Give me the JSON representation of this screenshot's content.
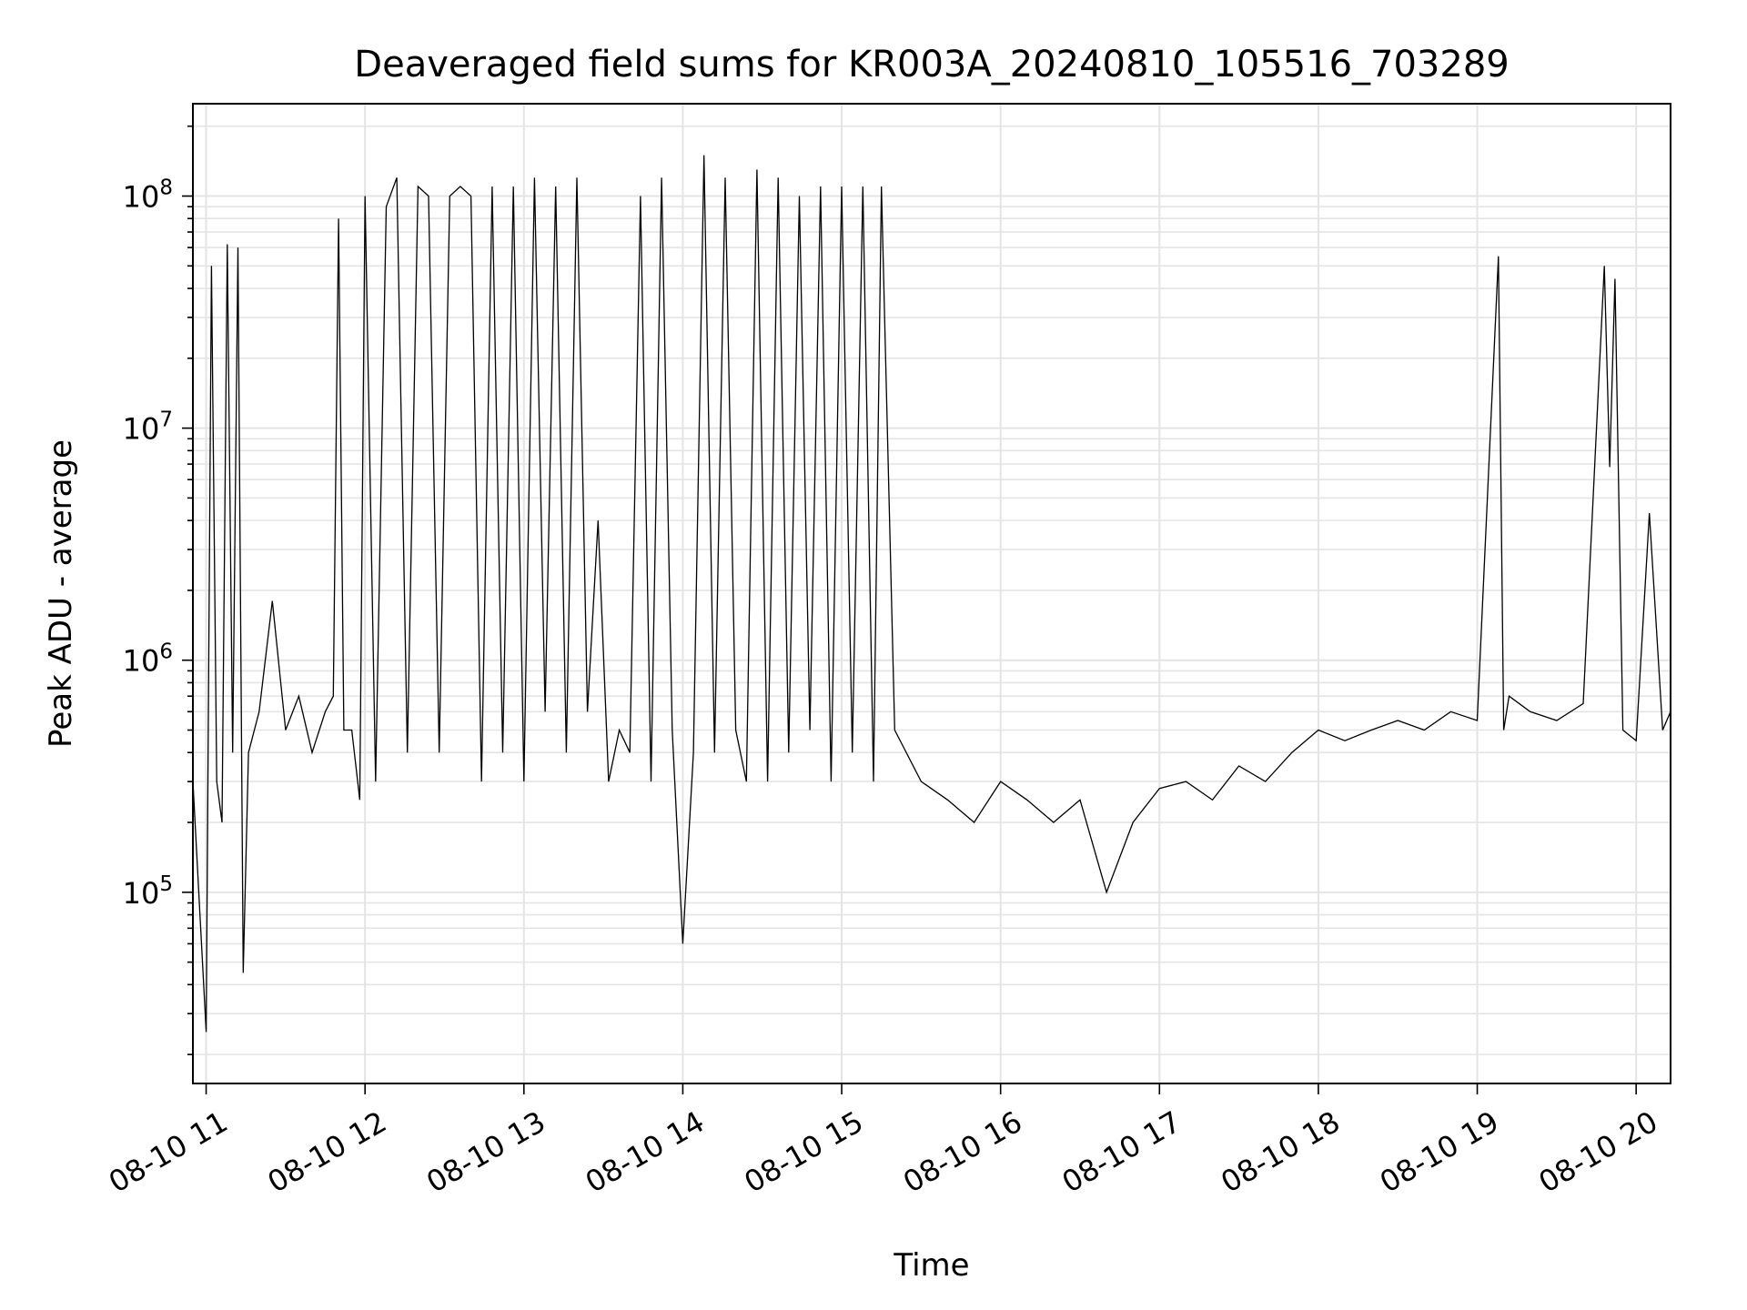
{
  "chart_data": {
    "type": "line",
    "title": "Deaveraged field sums for KR003A_20240810_105516_703289",
    "xlabel": "Time",
    "ylabel": "Peak ADU - average",
    "yscale": "log",
    "ylim": [
      15000,
      250000000
    ],
    "xlim": [
      "2024-08-10 10:55",
      "2024-08-10 20:13"
    ],
    "grid": true,
    "legend": "none",
    "line_color": "#000000",
    "x_ticks": [
      {
        "t": "2024-08-10 11:00",
        "label": "08-10 11"
      },
      {
        "t": "2024-08-10 12:00",
        "label": "08-10 12"
      },
      {
        "t": "2024-08-10 13:00",
        "label": "08-10 13"
      },
      {
        "t": "2024-08-10 14:00",
        "label": "08-10 14"
      },
      {
        "t": "2024-08-10 15:00",
        "label": "08-10 15"
      },
      {
        "t": "2024-08-10 16:00",
        "label": "08-10 16"
      },
      {
        "t": "2024-08-10 17:00",
        "label": "08-10 17"
      },
      {
        "t": "2024-08-10 18:00",
        "label": "08-10 18"
      },
      {
        "t": "2024-08-10 19:00",
        "label": "08-10 19"
      },
      {
        "t": "2024-08-10 20:00",
        "label": "08-10 20"
      }
    ],
    "y_ticks": [
      {
        "value": 100000,
        "base": "10",
        "exp": "5"
      },
      {
        "value": 1000000,
        "base": "10",
        "exp": "6"
      },
      {
        "value": 10000000,
        "base": "10",
        "exp": "7"
      },
      {
        "value": 100000000,
        "base": "10",
        "exp": "8"
      }
    ],
    "series": [
      {
        "x": [
          "2024-08-10 10:55",
          "2024-08-10 11:00",
          "2024-08-10 11:02",
          "2024-08-10 11:04",
          "2024-08-10 11:06",
          "2024-08-10 11:08",
          "2024-08-10 11:10",
          "2024-08-10 11:12",
          "2024-08-10 11:14",
          "2024-08-10 11:16",
          "2024-08-10 11:20",
          "2024-08-10 11:25",
          "2024-08-10 11:30",
          "2024-08-10 11:35",
          "2024-08-10 11:40",
          "2024-08-10 11:45",
          "2024-08-10 11:48",
          "2024-08-10 11:50",
          "2024-08-10 11:52",
          "2024-08-10 11:55",
          "2024-08-10 11:58",
          "2024-08-10 12:00",
          "2024-08-10 12:04",
          "2024-08-10 12:08",
          "2024-08-10 12:12",
          "2024-08-10 12:16",
          "2024-08-10 12:20",
          "2024-08-10 12:24",
          "2024-08-10 12:28",
          "2024-08-10 12:32",
          "2024-08-10 12:36",
          "2024-08-10 12:40",
          "2024-08-10 12:44",
          "2024-08-10 12:48",
          "2024-08-10 12:52",
          "2024-08-10 12:56",
          "2024-08-10 13:00",
          "2024-08-10 13:04",
          "2024-08-10 13:08",
          "2024-08-10 13:12",
          "2024-08-10 13:16",
          "2024-08-10 13:20",
          "2024-08-10 13:24",
          "2024-08-10 13:28",
          "2024-08-10 13:32",
          "2024-08-10 13:36",
          "2024-08-10 13:40",
          "2024-08-10 13:44",
          "2024-08-10 13:48",
          "2024-08-10 13:52",
          "2024-08-10 13:56",
          "2024-08-10 14:00",
          "2024-08-10 14:04",
          "2024-08-10 14:08",
          "2024-08-10 14:12",
          "2024-08-10 14:16",
          "2024-08-10 14:20",
          "2024-08-10 14:24",
          "2024-08-10 14:28",
          "2024-08-10 14:32",
          "2024-08-10 14:36",
          "2024-08-10 14:40",
          "2024-08-10 14:44",
          "2024-08-10 14:48",
          "2024-08-10 14:52",
          "2024-08-10 14:56",
          "2024-08-10 15:00",
          "2024-08-10 15:04",
          "2024-08-10 15:08",
          "2024-08-10 15:12",
          "2024-08-10 15:15",
          "2024-08-10 15:20",
          "2024-08-10 15:30",
          "2024-08-10 15:40",
          "2024-08-10 15:50",
          "2024-08-10 16:00",
          "2024-08-10 16:10",
          "2024-08-10 16:20",
          "2024-08-10 16:30",
          "2024-08-10 16:40",
          "2024-08-10 16:50",
          "2024-08-10 17:00",
          "2024-08-10 17:10",
          "2024-08-10 17:20",
          "2024-08-10 17:30",
          "2024-08-10 17:40",
          "2024-08-10 17:50",
          "2024-08-10 18:00",
          "2024-08-10 18:10",
          "2024-08-10 18:20",
          "2024-08-10 18:30",
          "2024-08-10 18:40",
          "2024-08-10 18:50",
          "2024-08-10 19:00",
          "2024-08-10 19:08",
          "2024-08-10 19:10",
          "2024-08-10 19:12",
          "2024-08-10 19:20",
          "2024-08-10 19:30",
          "2024-08-10 19:40",
          "2024-08-10 19:48",
          "2024-08-10 19:50",
          "2024-08-10 19:52",
          "2024-08-10 19:55",
          "2024-08-10 20:00",
          "2024-08-10 20:05",
          "2024-08-10 20:10",
          "2024-08-10 20:13"
        ],
        "y": [
          300000,
          25000,
          50000000,
          300000,
          200000,
          62000000,
          400000,
          60000000,
          45000,
          400000,
          600000,
          1800000,
          500000,
          700000,
          400000,
          600000,
          700000,
          80000000,
          500000,
          500000,
          250000,
          100000000,
          300000,
          90000000,
          120000000,
          400000,
          110000000,
          100000000,
          400000,
          100000000,
          110000000,
          100000000,
          300000,
          110000000,
          400000,
          110000000,
          300000,
          120000000,
          600000,
          110000000,
          400000,
          120000000,
          600000,
          4000000,
          300000,
          500000,
          400000,
          100000000,
          300000,
          120000000,
          500000,
          60000,
          400000,
          150000000,
          400000,
          120000000,
          500000,
          300000,
          130000000,
          300000,
          120000000,
          400000,
          100000000,
          500000,
          110000000,
          300000,
          110000000,
          400000,
          110000000,
          300000,
          110000000,
          500000,
          300000,
          250000,
          200000,
          300000,
          250000,
          200000,
          250000,
          100000,
          200000,
          280000,
          300000,
          250000,
          350000,
          300000,
          400000,
          500000,
          450000,
          500000,
          550000,
          500000,
          600000,
          550000,
          55000000,
          500000,
          700000,
          600000,
          550000,
          650000,
          50000000,
          6800000,
          44000000,
          500000,
          450000,
          4300000,
          500000,
          600000
        ]
      }
    ]
  }
}
